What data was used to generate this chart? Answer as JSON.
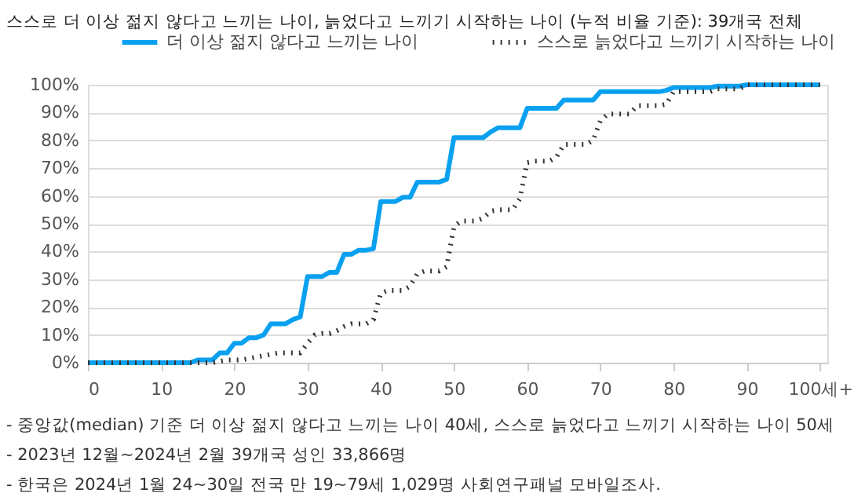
{
  "chart_data": {
    "type": "line",
    "title": "스스로 더 이상 젊지 않다고 느끼는 나이, 늙었다고 느끼기 시작하는 나이 (누적 비율 기준): 39개국 전체",
    "x": [
      0,
      1,
      2,
      3,
      4,
      5,
      6,
      7,
      8,
      9,
      10,
      11,
      12,
      13,
      14,
      15,
      16,
      17,
      18,
      19,
      20,
      21,
      22,
      23,
      24,
      25,
      26,
      27,
      28,
      29,
      30,
      31,
      32,
      33,
      34,
      35,
      36,
      37,
      38,
      39,
      40,
      41,
      42,
      43,
      44,
      45,
      46,
      47,
      48,
      49,
      50,
      51,
      52,
      53,
      54,
      55,
      56,
      57,
      58,
      59,
      60,
      61,
      62,
      63,
      64,
      65,
      66,
      67,
      68,
      69,
      70,
      71,
      72,
      73,
      74,
      75,
      76,
      77,
      78,
      79,
      80,
      81,
      82,
      83,
      84,
      85,
      86,
      87,
      88,
      89,
      90,
      91,
      92,
      93,
      94,
      95,
      96,
      97,
      98,
      99,
      100
    ],
    "series": [
      {
        "name": "더 이상 젊지 않다고 느끼는 나이",
        "color": "#0aa0f0",
        "line_style": "solid",
        "values": [
          0,
          0,
          0,
          0,
          0,
          0,
          0,
          0,
          0,
          0,
          0,
          0,
          0,
          0,
          0,
          1,
          1,
          1,
          3.5,
          3.5,
          7,
          7,
          9,
          9,
          10,
          14,
          14,
          14,
          15.5,
          16.5,
          31,
          31,
          31,
          32.5,
          32.5,
          39,
          39,
          40.5,
          40.5,
          41,
          58,
          58,
          58,
          59.5,
          59.5,
          65,
          65,
          65,
          65,
          66,
          81,
          81,
          81,
          81,
          81,
          83,
          84.5,
          84.5,
          84.5,
          84.5,
          91.5,
          91.5,
          91.5,
          91.5,
          91.5,
          94.5,
          94.5,
          94.5,
          94.5,
          94.5,
          97.5,
          97.5,
          97.5,
          97.5,
          97.5,
          97.5,
          97.5,
          97.5,
          97.5,
          98,
          99,
          99,
          99,
          99,
          99,
          99,
          99.5,
          99.5,
          99.5,
          99.5,
          100,
          100,
          100,
          100,
          100,
          100,
          100,
          100,
          100,
          100,
          100
        ]
      },
      {
        "name": "스스로 늙었다고 느끼기 시작하는 나이",
        "color": "#333333",
        "line_style": "dotted",
        "values": [
          0,
          0,
          0,
          0,
          0,
          0,
          0,
          0,
          0,
          0,
          0,
          0,
          0,
          0,
          0,
          0,
          0,
          0,
          0.5,
          1,
          1,
          1,
          1.5,
          2,
          2.5,
          3,
          3.5,
          3.5,
          3.5,
          3.5,
          7,
          10,
          10.5,
          10.5,
          11.5,
          13,
          14,
          14,
          14,
          15.5,
          25,
          26,
          26,
          26,
          27.5,
          32,
          33,
          33,
          33,
          34.5,
          49,
          51,
          51,
          51,
          52,
          54.5,
          55,
          55,
          55,
          59,
          72,
          72.5,
          72.5,
          72.5,
          74,
          78.5,
          78.5,
          78.5,
          78.5,
          80,
          87,
          89.5,
          89.5,
          89.5,
          89.5,
          92.5,
          92.5,
          92.5,
          92.5,
          93,
          97.5,
          97.5,
          97.5,
          97.5,
          97.5,
          97.5,
          98.5,
          98.5,
          98.5,
          98.5,
          100,
          100,
          100,
          100,
          100,
          100,
          100,
          100,
          100,
          100,
          100
        ]
      }
    ],
    "xlim": [
      0,
      101
    ],
    "xticks": [
      0,
      10,
      20,
      30,
      40,
      50,
      60,
      70,
      80,
      90,
      {
        "value": 100,
        "label": "100세+"
      }
    ],
    "ylim": [
      0,
      100
    ],
    "yticks": [
      {
        "value": 0,
        "label": "0%"
      },
      {
        "value": 10,
        "label": "10%"
      },
      {
        "value": 20,
        "label": "20%"
      },
      {
        "value": 30,
        "label": "30%"
      },
      {
        "value": 40,
        "label": "40%"
      },
      {
        "value": 50,
        "label": "50%"
      },
      {
        "value": 60,
        "label": "60%"
      },
      {
        "value": 70,
        "label": "70%"
      },
      {
        "value": 80,
        "label": "80%"
      },
      {
        "value": 90,
        "label": "90%"
      },
      {
        "value": 100,
        "label": "100%"
      }
    ],
    "grid": "y",
    "legend": "top",
    "marker": "none",
    "annotations": [
      "- 중앙값(median) 기준 더 이상 젊지 않다고 느끼는 나이 40세, 스스로 늙었다고 느끼기 시작하는 나이 50세",
      "- 2023년 12월~2024년 2월 39개국 성인 33,866명",
      "- 한국은 2024년 1월 24~30일 전국 만 19~79세 1,029명 사회연구패널 모바일조사."
    ]
  }
}
